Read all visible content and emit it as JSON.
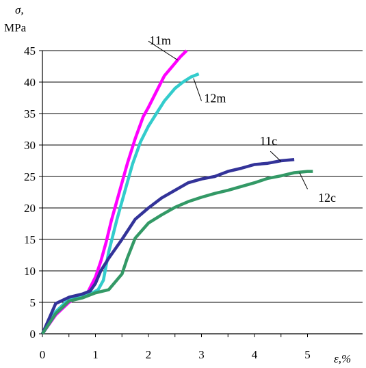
{
  "chart_data": {
    "type": "line",
    "ylabel_symbol": "σ,",
    "ylabel_unit": "MPa",
    "xlabel": "ε,%",
    "xlim": [
      0,
      5.5
    ],
    "ylim": [
      0,
      45
    ],
    "xticks": [
      "0",
      "1",
      "2",
      "3",
      "4",
      "5"
    ],
    "yticks": [
      "0",
      "5",
      "10",
      "15",
      "20",
      "25",
      "30",
      "35",
      "40",
      "45"
    ],
    "grid": "horizontal",
    "series": [
      {
        "name": "11m",
        "color": "#ff00ff",
        "x": [
          0,
          0.25,
          0.5,
          0.7,
          0.85,
          1.0,
          1.1,
          1.2,
          1.3,
          1.45,
          1.6,
          1.75,
          1.9,
          2.0,
          2.15,
          2.3,
          2.5,
          2.6,
          2.72
        ],
        "y": [
          0,
          3.0,
          5.0,
          6.0,
          6.5,
          9.0,
          11.5,
          14.5,
          18.0,
          22.5,
          27.0,
          31.0,
          34.5,
          36.0,
          38.5,
          41.0,
          43.0,
          44.0,
          45.0
        ]
      },
      {
        "name": "12m",
        "color": "#33cccc",
        "x": [
          0,
          0.25,
          0.5,
          0.7,
          0.9,
          1.05,
          1.15,
          1.25,
          1.4,
          1.55,
          1.7,
          1.85,
          2.0,
          2.15,
          2.3,
          2.5,
          2.65,
          2.8,
          2.95
        ],
        "y": [
          0,
          3.5,
          5.5,
          6.0,
          6.3,
          7.0,
          8.5,
          13.0,
          18.0,
          22.5,
          27.0,
          30.5,
          33.0,
          35.0,
          37.0,
          39.0,
          40.0,
          40.8,
          41.3
        ]
      },
      {
        "name": "11c",
        "color": "#333399",
        "x": [
          0,
          0.25,
          0.5,
          0.75,
          0.9,
          1.0,
          1.1,
          1.25,
          1.5,
          1.75,
          2.0,
          2.25,
          2.5,
          2.75,
          3.0,
          3.25,
          3.5,
          3.75,
          4.0,
          4.25,
          4.5,
          4.75
        ],
        "y": [
          0,
          4.8,
          5.8,
          6.3,
          6.8,
          8.0,
          10.0,
          12.0,
          15.0,
          18.2,
          20.0,
          21.6,
          22.8,
          24.0,
          24.6,
          25.0,
          25.8,
          26.3,
          26.9,
          27.1,
          27.5,
          27.7
        ]
      },
      {
        "name": "12c",
        "color": "#339966",
        "x": [
          0,
          0.25,
          0.5,
          0.75,
          1.0,
          1.25,
          1.5,
          1.6,
          1.75,
          2.0,
          2.25,
          2.5,
          2.75,
          3.0,
          3.25,
          3.5,
          3.75,
          4.0,
          4.25,
          4.5,
          4.75,
          5.0,
          5.1
        ],
        "y": [
          0,
          3.2,
          5.2,
          5.7,
          6.5,
          7.0,
          9.5,
          12.0,
          15.2,
          17.6,
          18.9,
          20.1,
          21.0,
          21.7,
          22.3,
          22.8,
          23.4,
          24.0,
          24.7,
          25.1,
          25.6,
          25.8,
          25.8
        ]
      }
    ]
  }
}
